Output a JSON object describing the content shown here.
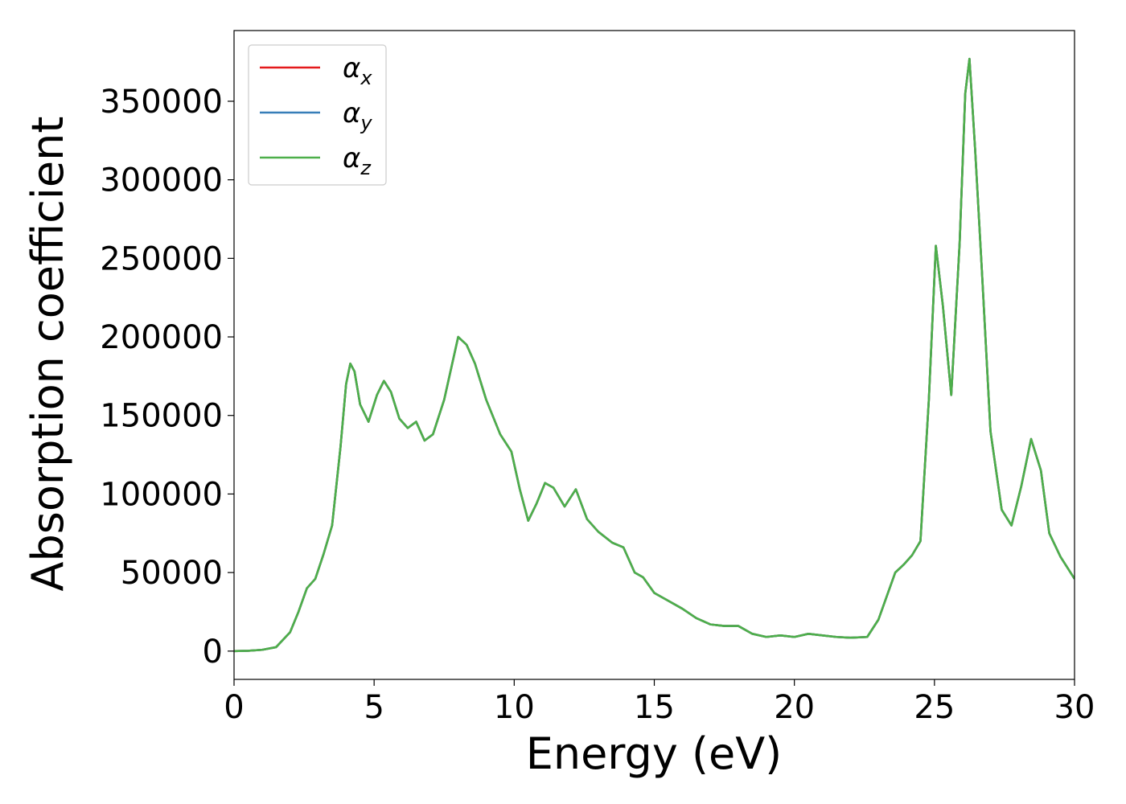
{
  "chart_data": {
    "type": "line",
    "xlabel": "Energy (eV)",
    "ylabel": "Absorption coefficient",
    "xlim": [
      0,
      30
    ],
    "ylim": [
      -18000,
      395000
    ],
    "xticks": [
      0,
      5,
      10,
      15,
      20,
      25,
      30
    ],
    "yticks": [
      0,
      50000,
      100000,
      150000,
      200000,
      250000,
      300000,
      350000
    ],
    "grid": false,
    "legend": {
      "position": "top-left",
      "entries": [
        {
          "main": "α",
          "sub": "x",
          "color": "#e41a1c"
        },
        {
          "main": "α",
          "sub": "y",
          "color": "#377eb8"
        },
        {
          "main": "α",
          "sub": "z",
          "color": "#4daf4a"
        }
      ]
    },
    "x": [
      0,
      0.5,
      1.0,
      1.5,
      2.0,
      2.3,
      2.6,
      2.9,
      3.2,
      3.5,
      3.8,
      4.0,
      4.15,
      4.3,
      4.5,
      4.8,
      5.1,
      5.35,
      5.6,
      5.9,
      6.2,
      6.5,
      6.8,
      7.1,
      7.5,
      8.0,
      8.3,
      8.6,
      9.0,
      9.5,
      9.9,
      10.2,
      10.5,
      10.8,
      11.1,
      11.4,
      11.8,
      12.2,
      12.6,
      13.0,
      13.5,
      13.9,
      14.3,
      14.6,
      15.0,
      15.5,
      16.0,
      16.5,
      17.0,
      17.5,
      18.0,
      18.5,
      19.0,
      19.5,
      20.0,
      20.5,
      21.0,
      21.5,
      22.0,
      22.6,
      23.0,
      23.3,
      23.6,
      23.9,
      24.2,
      24.5,
      24.8,
      25.05,
      25.3,
      25.6,
      25.9,
      26.1,
      26.25,
      26.45,
      26.7,
      27.0,
      27.4,
      27.75,
      28.1,
      28.45,
      28.8,
      29.1,
      29.5,
      30.0
    ],
    "series": [
      {
        "name": "αx",
        "color": "#e41a1c",
        "values": [
          0,
          200,
          800,
          2500,
          12000,
          25000,
          40000,
          46000,
          62000,
          80000,
          130000,
          170000,
          183000,
          178000,
          157000,
          146000,
          163000,
          172000,
          165000,
          148000,
          142000,
          146000,
          134000,
          138000,
          160000,
          200000,
          195000,
          183000,
          160000,
          138000,
          127000,
          103000,
          83000,
          94000,
          107000,
          104000,
          92000,
          103000,
          84000,
          76000,
          69000,
          66000,
          50000,
          47000,
          37000,
          32000,
          27000,
          21000,
          17000,
          16000,
          16000,
          11000,
          9000,
          10000,
          9000,
          11000,
          10000,
          9000,
          8500,
          9000,
          20000,
          35000,
          50000,
          55000,
          61000,
          70000,
          160000,
          258000,
          220000,
          163000,
          260000,
          355000,
          377000,
          320000,
          240000,
          140000,
          90000,
          80000,
          105000,
          135000,
          115000,
          75000,
          60000,
          46000
        ]
      },
      {
        "name": "αy",
        "color": "#377eb8",
        "values": [
          0,
          200,
          800,
          2500,
          12000,
          25000,
          40000,
          46000,
          62000,
          80000,
          130000,
          170000,
          183000,
          178000,
          157000,
          146000,
          163000,
          172000,
          165000,
          148000,
          142000,
          146000,
          134000,
          138000,
          160000,
          200000,
          195000,
          183000,
          160000,
          138000,
          127000,
          103000,
          83000,
          94000,
          107000,
          104000,
          92000,
          103000,
          84000,
          76000,
          69000,
          66000,
          50000,
          47000,
          37000,
          32000,
          27000,
          21000,
          17000,
          16000,
          16000,
          11000,
          9000,
          10000,
          9000,
          11000,
          10000,
          9000,
          8500,
          9000,
          20000,
          35000,
          50000,
          55000,
          61000,
          70000,
          160000,
          258000,
          220000,
          163000,
          260000,
          355000,
          377000,
          320000,
          240000,
          140000,
          90000,
          80000,
          105000,
          135000,
          115000,
          75000,
          60000,
          46000
        ]
      },
      {
        "name": "αz",
        "color": "#4daf4a",
        "values": [
          0,
          200,
          800,
          2500,
          12000,
          25000,
          40000,
          46000,
          62000,
          80000,
          130000,
          170000,
          183000,
          178000,
          157000,
          146000,
          163000,
          172000,
          165000,
          148000,
          142000,
          146000,
          134000,
          138000,
          160000,
          200000,
          195000,
          183000,
          160000,
          138000,
          127000,
          103000,
          83000,
          94000,
          107000,
          104000,
          92000,
          103000,
          84000,
          76000,
          69000,
          66000,
          50000,
          47000,
          37000,
          32000,
          27000,
          21000,
          17000,
          16000,
          16000,
          11000,
          9000,
          10000,
          9000,
          11000,
          10000,
          9000,
          8500,
          9000,
          20000,
          35000,
          50000,
          55000,
          61000,
          70000,
          160000,
          258000,
          220000,
          163000,
          260000,
          355000,
          377000,
          320000,
          240000,
          140000,
          90000,
          80000,
          105000,
          135000,
          115000,
          75000,
          60000,
          46000
        ]
      }
    ]
  }
}
